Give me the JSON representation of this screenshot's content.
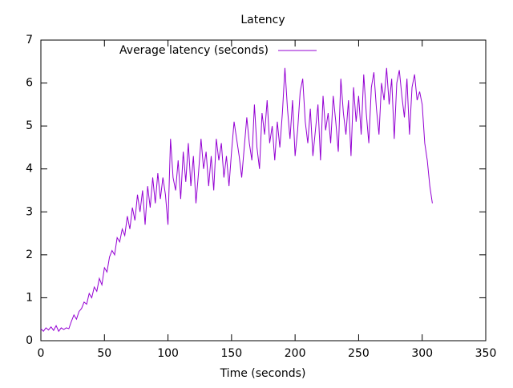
{
  "chart_data": {
    "type": "line",
    "title": "Latency",
    "xlabel": "Time (seconds)",
    "x": [
      0,
      2,
      4,
      6,
      8,
      10,
      12,
      14,
      16,
      18,
      20,
      22,
      24,
      26,
      28,
      30,
      32,
      34,
      36,
      38,
      40,
      42,
      44,
      46,
      48,
      50,
      52,
      54,
      56,
      58,
      60,
      62,
      64,
      66,
      68,
      70,
      72,
      74,
      76,
      78,
      80,
      82,
      84,
      86,
      88,
      90,
      92,
      94,
      96,
      98,
      100,
      102,
      104,
      106,
      108,
      110,
      112,
      114,
      116,
      118,
      120,
      122,
      124,
      126,
      128,
      130,
      132,
      134,
      136,
      138,
      140,
      142,
      144,
      146,
      148,
      150,
      152,
      154,
      156,
      158,
      160,
      162,
      164,
      166,
      168,
      170,
      172,
      174,
      176,
      178,
      180,
      182,
      184,
      186,
      188,
      190,
      192,
      194,
      196,
      198,
      200,
      202,
      204,
      206,
      208,
      210,
      212,
      214,
      216,
      218,
      220,
      222,
      224,
      226,
      228,
      230,
      232,
      234,
      236,
      238,
      240,
      242,
      244,
      246,
      248,
      250,
      252,
      254,
      256,
      258,
      260,
      262,
      264,
      266,
      268,
      270,
      272,
      274,
      276,
      278,
      280,
      282,
      284,
      286,
      288,
      290,
      292,
      294,
      296,
      298,
      300,
      302,
      304,
      306,
      308
    ],
    "series": [
      {
        "name": "Average latency (seconds)",
        "color": "#9400d3",
        "values": [
          0.28,
          0.22,
          0.3,
          0.25,
          0.32,
          0.24,
          0.35,
          0.22,
          0.3,
          0.26,
          0.3,
          0.28,
          0.45,
          0.6,
          0.5,
          0.68,
          0.75,
          0.9,
          0.85,
          1.1,
          1.0,
          1.25,
          1.15,
          1.45,
          1.3,
          1.7,
          1.6,
          1.95,
          2.1,
          2.0,
          2.4,
          2.3,
          2.6,
          2.45,
          2.9,
          2.6,
          3.1,
          2.8,
          3.4,
          3.0,
          3.5,
          2.7,
          3.6,
          3.1,
          3.8,
          3.2,
          3.9,
          3.3,
          3.8,
          3.4,
          2.7,
          4.7,
          3.8,
          3.5,
          4.2,
          3.3,
          4.4,
          3.7,
          4.6,
          3.6,
          4.3,
          3.2,
          3.9,
          4.7,
          4.0,
          4.4,
          3.6,
          4.3,
          3.5,
          4.7,
          4.2,
          4.6,
          3.8,
          4.3,
          3.6,
          4.4,
          5.1,
          4.7,
          4.3,
          3.8,
          4.5,
          5.2,
          4.6,
          4.2,
          5.5,
          4.5,
          4.0,
          5.3,
          4.8,
          5.6,
          4.6,
          5.0,
          4.2,
          5.1,
          4.5,
          5.3,
          6.35,
          5.4,
          4.7,
          5.6,
          4.3,
          4.9,
          5.8,
          6.1,
          5.1,
          4.6,
          5.4,
          4.3,
          4.9,
          5.5,
          4.2,
          5.7,
          4.9,
          5.3,
          4.6,
          5.7,
          5.1,
          4.4,
          6.1,
          5.3,
          4.8,
          5.6,
          4.3,
          5.9,
          5.1,
          5.7,
          4.8,
          6.2,
          5.3,
          4.6,
          5.9,
          6.25,
          5.4,
          4.8,
          6.0,
          5.6,
          6.35,
          5.5,
          6.1,
          4.7,
          6.0,
          6.3,
          5.7,
          5.2,
          6.1,
          4.8,
          5.9,
          6.2,
          5.6,
          5.8,
          5.5,
          4.6,
          4.2,
          3.6,
          3.2
        ]
      }
    ],
    "xlim": [
      0,
      350
    ],
    "xticks": [
      0,
      50,
      100,
      150,
      200,
      250,
      300,
      350
    ],
    "ylim": [
      0,
      7
    ],
    "yticks": [
      0,
      1,
      2,
      3,
      4,
      5,
      6,
      7
    ],
    "legend": "top left"
  }
}
